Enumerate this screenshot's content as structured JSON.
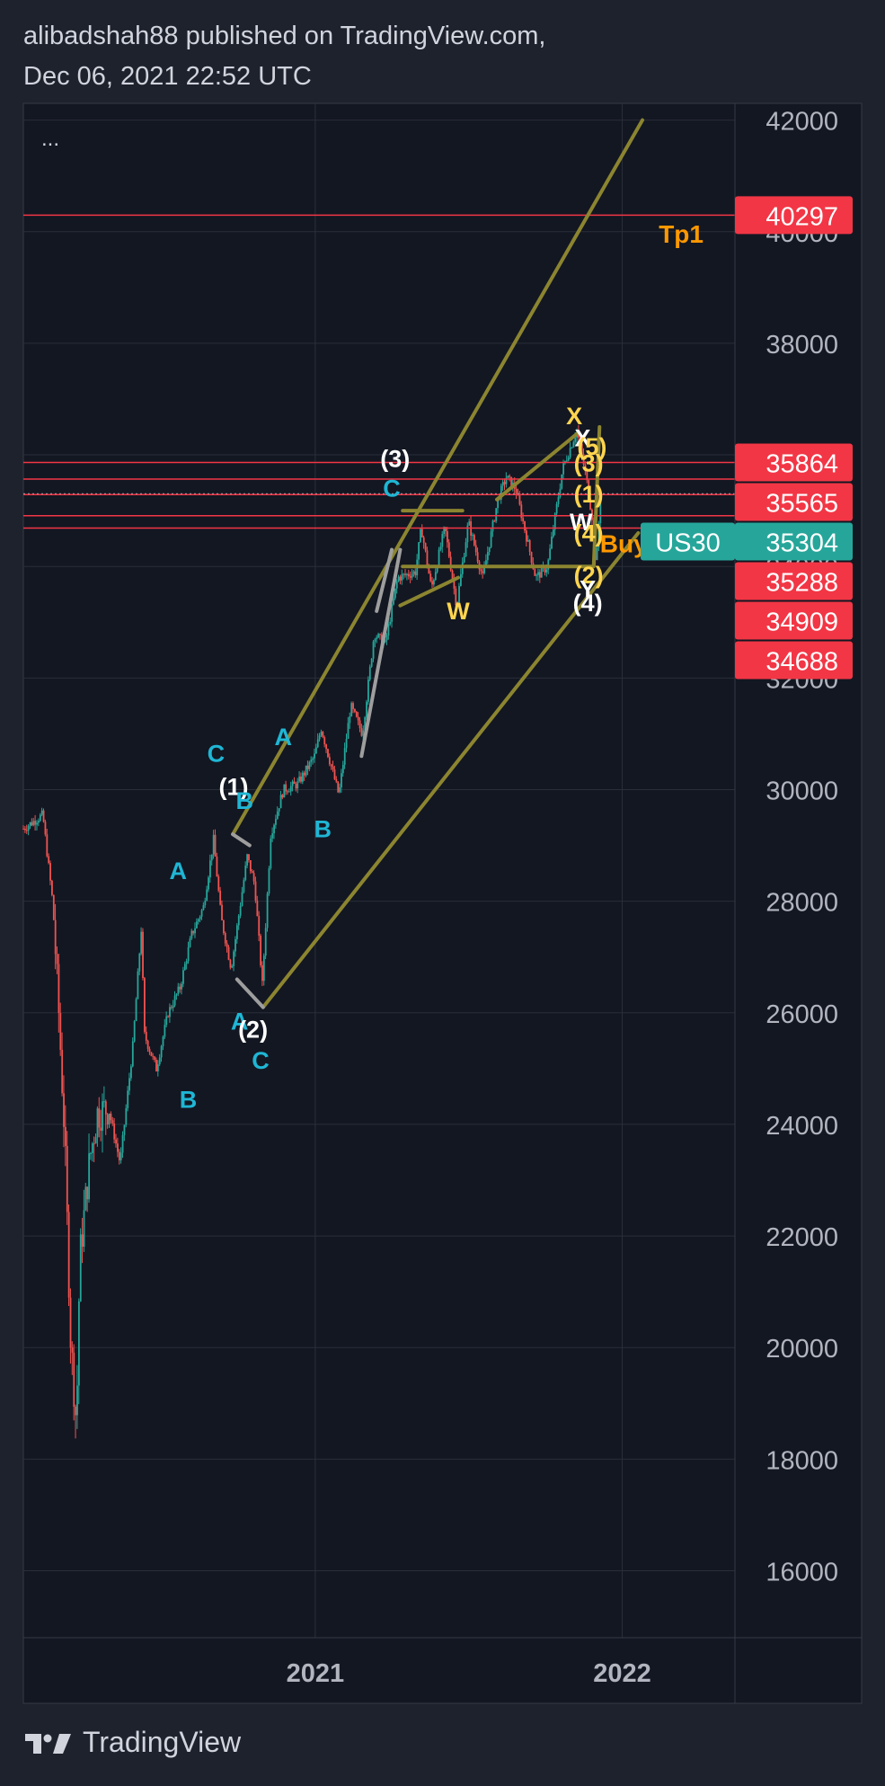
{
  "header": {
    "line1": "alibadshah88 published on TradingView.com,",
    "line2": "Dec 06, 2021 22:52 UTC"
  },
  "menu_label": "...",
  "footer": {
    "brand": "TradingView"
  },
  "colors": {
    "background": "#131722",
    "frame": "#1e222d",
    "grid": "#2a2e39",
    "up_candle": "#26a69a",
    "down_candle": "#ef5350",
    "channel": "#8c8530",
    "price_line": "#f23645",
    "label_red": "#f23645",
    "label_teal": "#26a69a",
    "wave_cyan": "#1fb6d4",
    "wave_white": "#ffffff",
    "wave_yellow": "#ffd54f",
    "annotation_orange": "#ff9800",
    "corrective_gray": "#9e9e9e"
  },
  "chart_data": {
    "type": "candlestick",
    "symbol": "US30",
    "last_price": "35304",
    "y_axis": {
      "range": [
        14800,
        42300
      ],
      "ticks": [
        "42000",
        "40000",
        "38000",
        "36000",
        "34000",
        "32000",
        "30000",
        "28000",
        "26000",
        "24000",
        "22000",
        "20000",
        "18000",
        "16000"
      ]
    },
    "x_axis": {
      "range": [
        "2020-01-20",
        "2022-05-15"
      ],
      "ticks": [
        {
          "label": "2021",
          "date": "2021-01-01"
        },
        {
          "label": "2022",
          "date": "2022-01-01"
        }
      ]
    },
    "price_series": [
      [
        "2020-01-20",
        29300
      ],
      [
        "2020-02-12",
        29550
      ],
      [
        "2020-02-24",
        27950
      ],
      [
        "2020-03-02",
        26000
      ],
      [
        "2020-03-09",
        23800
      ],
      [
        "2020-03-16",
        20200
      ],
      [
        "2020-03-23",
        18600
      ],
      [
        "2020-03-27",
        21600
      ],
      [
        "2020-04-08",
        23400
      ],
      [
        "2020-04-17",
        24200
      ],
      [
        "2020-04-30",
        24300
      ],
      [
        "2020-05-14",
        23300
      ],
      [
        "2020-05-29",
        25400
      ],
      [
        "2020-06-08",
        27500
      ],
      [
        "2020-06-12",
        25600
      ],
      [
        "2020-06-26",
        25000
      ],
      [
        "2020-07-10",
        26000
      ],
      [
        "2020-07-24",
        26450
      ],
      [
        "2020-08-07",
        27400
      ],
      [
        "2020-08-21",
        27900
      ],
      [
        "2020-09-02",
        29100
      ],
      [
        "2020-09-11",
        27700
      ],
      [
        "2020-09-23",
        26800
      ],
      [
        "2020-10-12",
        28800
      ],
      [
        "2020-10-21",
        28300
      ],
      [
        "2020-10-30",
        26500
      ],
      [
        "2020-11-09",
        29200
      ],
      [
        "2020-11-24",
        30000
      ],
      [
        "2020-12-11",
        30100
      ],
      [
        "2020-12-31",
        30600
      ],
      [
        "2021-01-08",
        31100
      ],
      [
        "2021-01-29",
        29900
      ],
      [
        "2021-02-12",
        31500
      ],
      [
        "2021-02-26",
        31000
      ],
      [
        "2021-03-12",
        32800
      ],
      [
        "2021-03-25",
        32600
      ],
      [
        "2021-04-09",
        33800
      ],
      [
        "2021-04-30",
        33900
      ],
      [
        "2021-05-07",
        34700
      ],
      [
        "2021-05-19",
        33600
      ],
      [
        "2021-06-04",
        34700
      ],
      [
        "2021-06-18",
        33300
      ],
      [
        "2021-07-02",
        34800
      ],
      [
        "2021-07-19",
        33800
      ],
      [
        "2021-08-06",
        35200
      ],
      [
        "2021-08-16",
        35600
      ],
      [
        "2021-08-27",
        35400
      ],
      [
        "2021-09-20",
        33800
      ],
      [
        "2021-10-04",
        34000
      ],
      [
        "2021-10-22",
        35750
      ],
      [
        "2021-11-08",
        36450
      ],
      [
        "2021-11-19",
        35600
      ],
      [
        "2021-11-26",
        34900
      ],
      [
        "2021-12-01",
        34000
      ],
      [
        "2021-12-06",
        35300
      ]
    ],
    "horizontal_levels": [
      {
        "value": 40297,
        "label": "40297"
      },
      {
        "value": 35864,
        "label": "35864"
      },
      {
        "value": 35565,
        "label": "35565"
      },
      {
        "value": 35288,
        "label": "35288"
      },
      {
        "value": 34909,
        "label": "34909"
      },
      {
        "value": 34688,
        "label": "34688"
      }
    ],
    "channel_lines": [
      {
        "from": [
          "2020-09-25",
          29200
        ],
        "to": [
          "2022-01-25",
          42000
        ]
      },
      {
        "from": [
          "2020-10-31",
          26100
        ],
        "to": [
          "2022-01-20",
          34600
        ]
      },
      {
        "from": [
          "2021-08-05",
          35200
        ],
        "to": [
          "2021-11-10",
          36400
        ]
      },
      {
        "from": [
          "2021-04-15",
          34000
        ],
        "to": [
          "2021-11-25",
          34000
        ]
      },
      {
        "from": [
          "2021-04-15",
          35000
        ],
        "to": [
          "2021-06-25",
          35000
        ]
      },
      {
        "from": [
          "2021-04-12",
          33300
        ],
        "to": [
          "2021-06-20",
          33800
        ]
      },
      {
        "from": [
          "2021-11-28",
          34000
        ],
        "to": [
          "2021-12-05",
          36500
        ]
      }
    ],
    "corrective_lines": [
      {
        "from": [
          "2020-09-25",
          29200
        ],
        "to": [
          "2020-10-15",
          29000
        ]
      },
      {
        "from": [
          "2020-09-30",
          26600
        ],
        "to": [
          "2020-10-31",
          26100
        ]
      },
      {
        "from": [
          "2021-02-25",
          30600
        ],
        "to": [
          "2021-04-12",
          34300
        ]
      },
      {
        "from": [
          "2021-03-15",
          33200
        ],
        "to": [
          "2021-04-02",
          34300
        ]
      }
    ],
    "wave_labels": [
      {
        "text": "C",
        "x": "2020-09-05",
        "y": 30500,
        "color": "cyan"
      },
      {
        "text": "(1)",
        "x": "2020-09-26",
        "y": 29900,
        "color": "white"
      },
      {
        "text": "B",
        "x": "2020-10-09",
        "y": 29650,
        "color": "cyan"
      },
      {
        "text": "A",
        "x": "2020-07-22",
        "y": 28400,
        "color": "cyan"
      },
      {
        "text": "A",
        "x": "2020-10-03",
        "y": 25700,
        "color": "cyan"
      },
      {
        "text": "(2)",
        "x": "2020-10-19",
        "y": 25550,
        "color": "white"
      },
      {
        "text": "C",
        "x": "2020-10-28",
        "y": 25000,
        "color": "cyan"
      },
      {
        "text": "B",
        "x": "2020-08-03",
        "y": 24300,
        "color": "cyan"
      },
      {
        "text": "A",
        "x": "2020-11-24",
        "y": 30800,
        "color": "cyan"
      },
      {
        "text": "B",
        "x": "2021-01-10",
        "y": 29150,
        "color": "cyan"
      },
      {
        "text": "(3)",
        "x": "2021-04-06",
        "y": 35780,
        "color": "white"
      },
      {
        "text": "C",
        "x": "2021-04-02",
        "y": 35250,
        "color": "cyan"
      },
      {
        "text": "W",
        "x": "2021-06-20",
        "y": 33050,
        "color": "yellow"
      },
      {
        "text": "X",
        "x": "2021-11-05",
        "y": 36550,
        "color": "yellow"
      },
      {
        "text": "X",
        "x": "2021-11-15",
        "y": 36150,
        "color": "white"
      },
      {
        "text": "(5)",
        "x": "2021-11-26",
        "y": 36000,
        "color": "yellow"
      },
      {
        "text": "(3)",
        "x": "2021-11-22",
        "y": 35700,
        "color": "yellow"
      },
      {
        "text": "(1)",
        "x": "2021-11-22",
        "y": 35150,
        "color": "yellow"
      },
      {
        "text": "W",
        "x": "2021-11-13",
        "y": 34650,
        "color": "white"
      },
      {
        "text": "(4)",
        "x": "2021-11-22",
        "y": 34450,
        "color": "yellow"
      },
      {
        "text": "(2)",
        "x": "2021-11-22",
        "y": 33700,
        "color": "yellow"
      },
      {
        "text": "Y",
        "x": "2021-11-21",
        "y": 33450,
        "color": "white"
      },
      {
        "text": "(4)",
        "x": "2021-11-21",
        "y": 33200,
        "color": "white"
      }
    ],
    "annotations": [
      {
        "text": "Tp1",
        "x": "2022-03-12",
        "y": 39800
      },
      {
        "text": "Buy zone",
        "x": "2022-02-10",
        "y": 34250
      }
    ]
  }
}
